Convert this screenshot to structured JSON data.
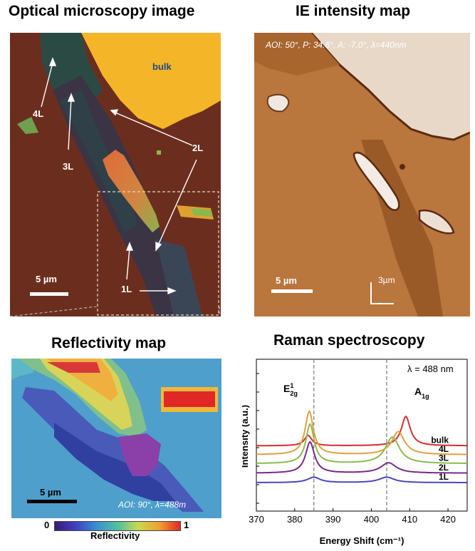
{
  "optical": {
    "title": "Optical microscopy image",
    "labels": {
      "bulk": "bulk",
      "l4": "4L",
      "l3": "3L",
      "l2": "2L",
      "l1": "1L"
    },
    "scale_bar": "5 µm"
  },
  "ie_map": {
    "title": "IE intensity map",
    "params": "AOI: 50°, P: 34.6°, A: -7.0°, λ=440nm",
    "scale_bar": "5 µm",
    "scale_bar_2": "3µm"
  },
  "reflectivity": {
    "title": "Reflectivity map",
    "scale_bar": "5 µm",
    "params": "AOI: 90°,  λ=488m",
    "colorbar": {
      "min": "0",
      "max": "1",
      "label": "Reflectivity"
    }
  },
  "raman": {
    "title": "Raman spectroscopy",
    "wavelength": "λ = 488 nm",
    "peak_e": "E",
    "peak_e_sup": "1",
    "peak_e_sub": "2g",
    "peak_a": "A",
    "peak_a_sub": "1g"
  },
  "chart_data": {
    "type": "line",
    "title": "Raman spectroscopy",
    "xlabel": "Energy Shift (cm⁻¹)",
    "ylabel": "Intensity (a.u.)",
    "xlim": [
      370,
      425
    ],
    "xticks": [
      370,
      380,
      390,
      400,
      410,
      420
    ],
    "dashed_lines_x": [
      385,
      404
    ],
    "series": [
      {
        "name": "bulk",
        "color": "#d62d2d",
        "offset": 0.91,
        "peaks": [
          {
            "x": 383.5,
            "h": 0.38,
            "w": 1.2
          },
          {
            "x": 409.0,
            "h": 1.08,
            "w": 1.4
          }
        ]
      },
      {
        "name": "4L",
        "color": "#e0a040",
        "offset": 0.58,
        "peaks": [
          {
            "x": 383.8,
            "h": 1.6,
            "w": 1.3
          },
          {
            "x": 407.0,
            "h": 0.85,
            "w": 2.0
          }
        ]
      },
      {
        "name": "3L",
        "color": "#8cba50",
        "offset": 0.25,
        "peaks": [
          {
            "x": 384.0,
            "h": 1.45,
            "w": 1.3
          },
          {
            "x": 405.5,
            "h": 0.98,
            "w": 2.2
          }
        ]
      },
      {
        "name": "2L",
        "color": "#7a2a8a",
        "offset": -0.1,
        "peaks": [
          {
            "x": 384.0,
            "h": 1.15,
            "w": 1.4
          },
          {
            "x": 404.5,
            "h": 0.38,
            "w": 2.4
          }
        ]
      },
      {
        "name": "1L",
        "color": "#4848c0",
        "offset": -0.45,
        "peaks": [
          {
            "x": 385.0,
            "h": 0.2,
            "w": 2.0
          },
          {
            "x": 404.0,
            "h": 0.2,
            "w": 2.4
          }
        ]
      }
    ]
  }
}
